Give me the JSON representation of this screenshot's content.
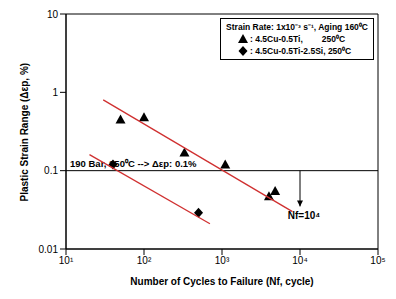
{
  "chart_data": {
    "type": "scatter",
    "log": true,
    "grid": false,
    "legend": "upper right",
    "legend_title": "Strain Rate: 1x10⁻³ s⁻¹, Aging 160⁰C",
    "x_label": "Number of Cycles to Failure (Nf, cycle)",
    "y_label": "Plastic Strain Range (Δεp, %)",
    "xlim": [
      10,
      100000
    ],
    "ylim": [
      0.01,
      10
    ],
    "xticks": [
      {
        "value": 10,
        "label": "10¹"
      },
      {
        "value": 100,
        "label": "10²"
      },
      {
        "value": 1000,
        "label": "10³"
      },
      {
        "value": 10000,
        "label": "10⁴"
      },
      {
        "value": 100000,
        "label": "10⁵"
      }
    ],
    "yticks": [
      0.01,
      0.1,
      1,
      10
    ],
    "series": [
      {
        "name": ": 4.5Cu-0.5Ti,        250⁰C",
        "color": "#000000",
        "marker": "triangle",
        "x": [
          50,
          100,
          330,
          1100,
          4000,
          4800
        ],
        "values": [
          0.45,
          0.48,
          0.17,
          0.12,
          0.047,
          0.055
        ]
      },
      {
        "name": ": 4.5Cu-0.5Ti-2.5Si, 250⁰C",
        "color": "#000000",
        "marker": "diamond",
        "x": [
          40,
          500
        ],
        "values": [
          0.12,
          0.029
        ]
      },
      {
        "type": "line",
        "color": "#d03030",
        "x": [
          30,
          8000
        ],
        "values": [
          0.8,
          0.03
        ]
      },
      {
        "type": "line",
        "color": "#d03030",
        "x": [
          20,
          700
        ],
        "values": [
          0.16,
          0.021
        ]
      }
    ],
    "reference_line": {
      "y": 0.1,
      "label": "190 Bar, 250⁰C --> Δεp: 0.1%"
    },
    "arrow": {
      "x": 10000,
      "y": [
        0.1,
        0.035
      ],
      "label": "Nf=10⁴"
    }
  }
}
